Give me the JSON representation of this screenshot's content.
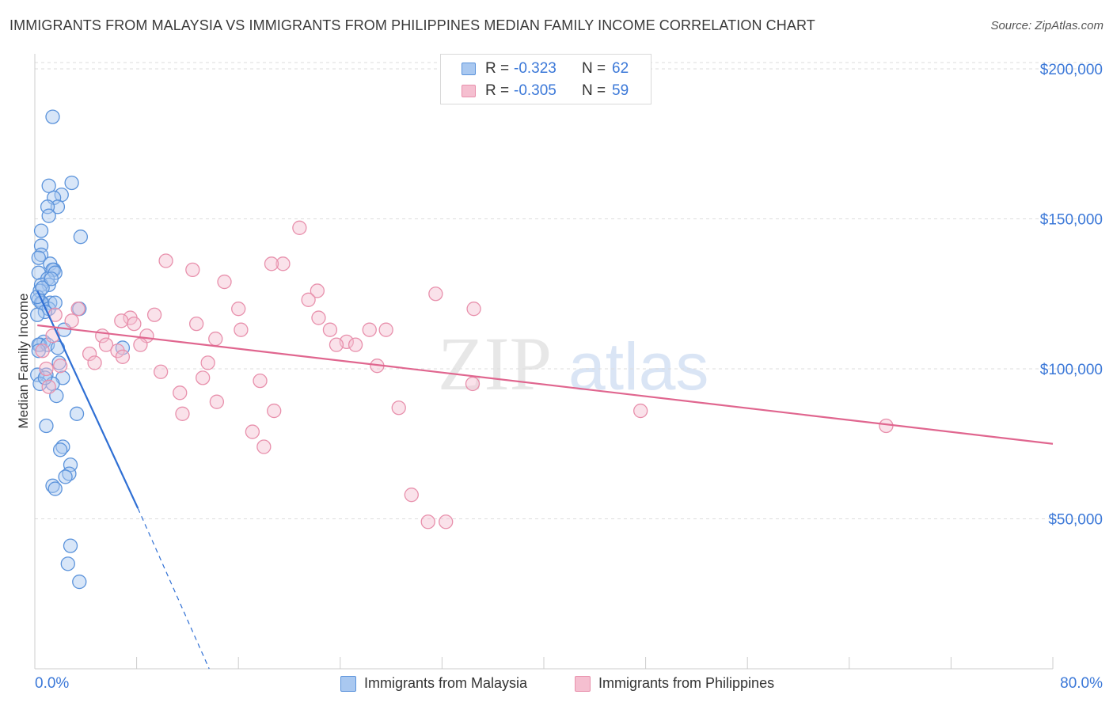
{
  "header": {
    "title": "IMMIGRANTS FROM MALAYSIA VS IMMIGRANTS FROM PHILIPPINES MEDIAN FAMILY INCOME CORRELATION CHART",
    "source": "Source: ZipAtlas.com"
  },
  "watermark": {
    "zip": "ZIP",
    "atlas": "atlas"
  },
  "stats": {
    "malaysia": {
      "r_label": "R =",
      "r_value": "-0.323",
      "n_label": "N =",
      "n_value": "62"
    },
    "philippines": {
      "r_label": "R =",
      "r_value": "-0.305",
      "n_label": "N =",
      "n_value": "59"
    }
  },
  "legend": {
    "malaysia": "Immigrants from Malaysia",
    "philippines": "Immigrants from Philippines"
  },
  "colors": {
    "malaysia_fill": "#a9c8f0",
    "malaysia_stroke": "#5b93db",
    "malaysia_line": "#2f6fd4",
    "philippines_fill": "#f5bfd0",
    "philippines_stroke": "#e890ac",
    "philippines_line": "#e0668f",
    "tick_label": "#3b78d8",
    "grid": "#dddddd"
  },
  "chart_data": {
    "type": "scatter",
    "title": "IMMIGRANTS FROM MALAYSIA VS IMMIGRANTS FROM PHILIPPINES MEDIAN FAMILY INCOME CORRELATION CHART",
    "ylabel": "Median Family Income",
    "xlim": [
      0,
      80
    ],
    "ylim": [
      0,
      205000
    ],
    "x_tick_labels": [
      "0.0%",
      "80.0%"
    ],
    "y_ticks": [
      {
        "value": 50000,
        "label": "$50,000"
      },
      {
        "value": 100000,
        "label": "$100,000"
      },
      {
        "value": 150000,
        "label": "$150,000"
      },
      {
        "value": 200000,
        "label": "$200,000"
      }
    ],
    "grid": true,
    "legend_position": "bottom-center",
    "series": [
      {
        "name": "Immigrants from Malaysia",
        "points": [
          [
            1.4,
            184000
          ],
          [
            1.1,
            161000
          ],
          [
            2.9,
            162000
          ],
          [
            2.1,
            158000
          ],
          [
            1.5,
            157000
          ],
          [
            1.8,
            154000
          ],
          [
            1.0,
            154000
          ],
          [
            1.1,
            151000
          ],
          [
            3.6,
            144000
          ],
          [
            0.5,
            146000
          ],
          [
            0.5,
            141000
          ],
          [
            0.5,
            138000
          ],
          [
            0.3,
            137000
          ],
          [
            1.2,
            135000
          ],
          [
            1.5,
            133000
          ],
          [
            1.4,
            133000
          ],
          [
            1.6,
            132000
          ],
          [
            0.3,
            132000
          ],
          [
            1.0,
            130000
          ],
          [
            1.1,
            128000
          ],
          [
            0.5,
            128000
          ],
          [
            0.4,
            126000
          ],
          [
            0.3,
            123000
          ],
          [
            0.6,
            122000
          ],
          [
            1.2,
            122000
          ],
          [
            0.5,
            122000
          ],
          [
            1.1,
            120000
          ],
          [
            3.5,
            120000
          ],
          [
            0.8,
            119000
          ],
          [
            0.2,
            118000
          ],
          [
            2.3,
            113000
          ],
          [
            0.7,
            109000
          ],
          [
            0.4,
            108000
          ],
          [
            0.3,
            108000
          ],
          [
            1.0,
            108000
          ],
          [
            0.3,
            106000
          ],
          [
            6.9,
            107000
          ],
          [
            1.8,
            107000
          ],
          [
            1.9,
            102000
          ],
          [
            0.9,
            98000
          ],
          [
            0.2,
            98000
          ],
          [
            2.2,
            97000
          ],
          [
            1.4,
            95000
          ],
          [
            0.4,
            95000
          ],
          [
            1.7,
            91000
          ],
          [
            3.3,
            85000
          ],
          [
            0.9,
            81000
          ],
          [
            2.2,
            74000
          ],
          [
            2.0,
            73000
          ],
          [
            2.8,
            68000
          ],
          [
            2.7,
            65000
          ],
          [
            2.4,
            64000
          ],
          [
            1.4,
            61000
          ],
          [
            1.6,
            60000
          ],
          [
            2.8,
            41000
          ],
          [
            2.6,
            35000
          ],
          [
            3.5,
            29000
          ],
          [
            0.2,
            124000
          ],
          [
            0.6,
            127000
          ],
          [
            1.3,
            130000
          ],
          [
            0.8,
            97000
          ],
          [
            1.6,
            122000
          ]
        ],
        "trend": {
          "x": [
            0.2,
            8.1
          ],
          "y": [
            126000,
            53500
          ],
          "dashed_extension_to": [
            13.7,
            0
          ]
        }
      },
      {
        "name": "Immigrants from Philippines",
        "points": [
          [
            20.8,
            147000
          ],
          [
            10.3,
            136000
          ],
          [
            19.5,
            135000
          ],
          [
            18.6,
            135000
          ],
          [
            12.4,
            133000
          ],
          [
            14.9,
            129000
          ],
          [
            22.2,
            126000
          ],
          [
            31.5,
            125000
          ],
          [
            21.5,
            123000
          ],
          [
            34.5,
            120000
          ],
          [
            16.0,
            120000
          ],
          [
            3.4,
            120000
          ],
          [
            1.6,
            118000
          ],
          [
            9.4,
            118000
          ],
          [
            22.3,
            117000
          ],
          [
            7.5,
            117000
          ],
          [
            2.9,
            116000
          ],
          [
            6.8,
            116000
          ],
          [
            12.7,
            115000
          ],
          [
            7.8,
            115000
          ],
          [
            23.2,
            113000
          ],
          [
            26.3,
            113000
          ],
          [
            27.6,
            113000
          ],
          [
            16.2,
            113000
          ],
          [
            5.3,
            111000
          ],
          [
            8.8,
            111000
          ],
          [
            1.4,
            111000
          ],
          [
            14.2,
            110000
          ],
          [
            24.5,
            109000
          ],
          [
            23.7,
            108000
          ],
          [
            25.2,
            108000
          ],
          [
            5.6,
            108000
          ],
          [
            8.3,
            108000
          ],
          [
            6.5,
            106000
          ],
          [
            4.3,
            105000
          ],
          [
            6.9,
            104000
          ],
          [
            0.6,
            106000
          ],
          [
            4.7,
            102000
          ],
          [
            13.6,
            102000
          ],
          [
            26.9,
            101000
          ],
          [
            9.9,
            99000
          ],
          [
            13.2,
            97000
          ],
          [
            17.7,
            96000
          ],
          [
            34.4,
            95000
          ],
          [
            11.4,
            92000
          ],
          [
            14.3,
            89000
          ],
          [
            28.6,
            87000
          ],
          [
            18.8,
            86000
          ],
          [
            47.6,
            86000
          ],
          [
            11.6,
            85000
          ],
          [
            66.9,
            81000
          ],
          [
            17.1,
            79000
          ],
          [
            18.0,
            74000
          ],
          [
            29.6,
            58000
          ],
          [
            30.9,
            49000
          ],
          [
            32.3,
            49000
          ],
          [
            1.1,
            94000
          ],
          [
            2.0,
            101000
          ],
          [
            0.9,
            100000
          ]
        ],
        "trend": {
          "x": [
            0.2,
            80
          ],
          "y": [
            114500,
            75000
          ]
        }
      }
    ]
  }
}
